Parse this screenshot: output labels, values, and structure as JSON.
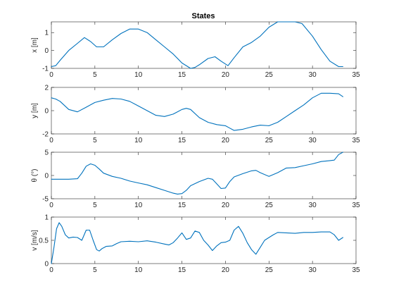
{
  "figure": {
    "title": "States",
    "line_color": "#0072BD"
  },
  "chart_data": [
    {
      "type": "line",
      "title": "States",
      "ylabel": "x [m]",
      "xlim": [
        0,
        35
      ],
      "ylim": [
        -1,
        1.6
      ],
      "xticks": [
        0,
        5,
        10,
        15,
        20,
        25,
        30,
        35
      ],
      "yticks": [
        -1,
        0,
        1
      ],
      "series": [
        {
          "x": [
            0,
            0.5,
            1,
            2,
            3,
            3.8,
            4.5,
            5.2,
            6,
            7,
            8,
            9,
            10,
            11,
            12,
            13,
            14,
            15,
            16,
            16.5,
            17,
            18,
            18.8,
            19.5,
            20.3,
            21,
            22,
            23,
            24,
            25,
            26,
            27,
            28,
            28.8,
            30,
            31,
            32,
            33,
            33.5
          ],
          "y": [
            -0.9,
            -0.85,
            -0.55,
            0.0,
            0.4,
            0.72,
            0.5,
            0.2,
            0.2,
            0.6,
            0.95,
            1.2,
            1.2,
            1.0,
            0.6,
            0.2,
            -0.2,
            -0.7,
            -1.0,
            -0.95,
            -0.8,
            -0.45,
            -0.35,
            -0.6,
            -0.85,
            -0.4,
            0.2,
            0.45,
            0.8,
            1.3,
            1.6,
            1.6,
            1.6,
            1.5,
            0.8,
            0.05,
            -0.6,
            -0.9,
            -0.9
          ]
        }
      ]
    },
    {
      "type": "line",
      "ylabel": "y [m]",
      "xlim": [
        0,
        35
      ],
      "ylim": [
        -2,
        2
      ],
      "xticks": [
        0,
        5,
        10,
        15,
        20,
        25,
        30,
        35
      ],
      "yticks": [
        -2,
        0,
        2
      ],
      "series": [
        {
          "x": [
            0,
            0.5,
            1,
            2,
            3,
            4,
            5,
            6,
            7,
            8,
            9,
            10,
            11,
            12,
            13,
            14,
            15,
            15.5,
            16,
            17,
            18,
            19,
            20,
            20.5,
            21,
            22,
            23,
            24,
            25,
            26,
            27,
            28,
            29,
            30,
            31,
            32,
            33,
            33.5
          ],
          "y": [
            1.1,
            1.0,
            0.8,
            0.1,
            -0.1,
            0.3,
            0.7,
            0.9,
            1.05,
            1.0,
            0.8,
            0.4,
            0.0,
            -0.4,
            -0.5,
            -0.3,
            0.1,
            0.2,
            0.1,
            -0.6,
            -1.0,
            -1.2,
            -1.3,
            -1.5,
            -1.7,
            -1.6,
            -1.4,
            -1.25,
            -1.3,
            -1.0,
            -0.5,
            0.0,
            0.5,
            1.1,
            1.5,
            1.5,
            1.45,
            1.2
          ]
        }
      ]
    },
    {
      "type": "line",
      "ylabel": "θ (°)",
      "xlim": [
        0,
        35
      ],
      "ylim": [
        -5,
        5
      ],
      "xticks": [
        0,
        5,
        10,
        15,
        20,
        25,
        30,
        35
      ],
      "yticks": [
        -5,
        0,
        5
      ],
      "series": [
        {
          "x": [
            0,
            1,
            2,
            3,
            3.5,
            4,
            4.5,
            5,
            5.5,
            6,
            7,
            8,
            9,
            10,
            11,
            12,
            13,
            14,
            14.5,
            15,
            15.5,
            16,
            17,
            18,
            18.5,
            19,
            19.5,
            20,
            20.5,
            21,
            22,
            23,
            23.5,
            24,
            25,
            26,
            27,
            28,
            29,
            30,
            31,
            32,
            32.5,
            33,
            33.5
          ],
          "y": [
            -0.8,
            -0.8,
            -0.8,
            -0.7,
            0.5,
            2.0,
            2.5,
            2.2,
            1.4,
            0.5,
            -0.2,
            -0.6,
            -1.2,
            -1.6,
            -2.0,
            -2.6,
            -3.2,
            -3.8,
            -4.0,
            -3.9,
            -3.2,
            -2.2,
            -1.3,
            -0.6,
            -0.8,
            -1.8,
            -2.8,
            -2.7,
            -1.3,
            -0.3,
            0.4,
            1.0,
            1.1,
            0.6,
            -0.2,
            0.6,
            1.6,
            1.7,
            2.1,
            2.5,
            3.0,
            3.2,
            3.3,
            4.5,
            5.0
          ]
        }
      ]
    },
    {
      "type": "line",
      "ylabel": "v [m/s]",
      "xlim": [
        0,
        35
      ],
      "ylim": [
        0,
        1
      ],
      "xticks": [
        0,
        5,
        10,
        15,
        20,
        25,
        30,
        35
      ],
      "yticks": [
        0,
        0.5,
        1
      ],
      "series": [
        {
          "x": [
            0,
            0.3,
            0.6,
            0.9,
            1.2,
            1.6,
            2.0,
            2.5,
            3.0,
            3.5,
            4.0,
            4.4,
            4.8,
            5.2,
            5.5,
            5.8,
            6.3,
            7.0,
            7.5,
            8.0,
            9.0,
            10.0,
            11.0,
            12.0,
            13.0,
            13.5,
            14.0,
            14.5,
            15.0,
            15.5,
            16.0,
            16.5,
            17.0,
            17.5,
            18.0,
            18.5,
            19.0,
            19.5,
            20.0,
            20.5,
            21.0,
            21.5,
            22.0,
            22.5,
            23.0,
            23.5,
            24.0,
            24.5,
            25.0,
            25.5,
            26.0,
            27.0,
            28.0,
            29.0,
            30.0,
            31.0,
            32.0,
            32.5,
            33.0,
            33.5
          ],
          "y": [
            0.0,
            0.35,
            0.75,
            0.88,
            0.8,
            0.62,
            0.55,
            0.57,
            0.56,
            0.5,
            0.72,
            0.72,
            0.5,
            0.3,
            0.27,
            0.32,
            0.37,
            0.38,
            0.43,
            0.47,
            0.48,
            0.47,
            0.49,
            0.46,
            0.42,
            0.4,
            0.45,
            0.55,
            0.66,
            0.52,
            0.55,
            0.7,
            0.67,
            0.5,
            0.4,
            0.28,
            0.38,
            0.45,
            0.46,
            0.5,
            0.72,
            0.8,
            0.65,
            0.45,
            0.3,
            0.2,
            0.35,
            0.5,
            0.56,
            0.62,
            0.67,
            0.66,
            0.65,
            0.67,
            0.67,
            0.68,
            0.68,
            0.62,
            0.5,
            0.56
          ]
        }
      ]
    }
  ]
}
